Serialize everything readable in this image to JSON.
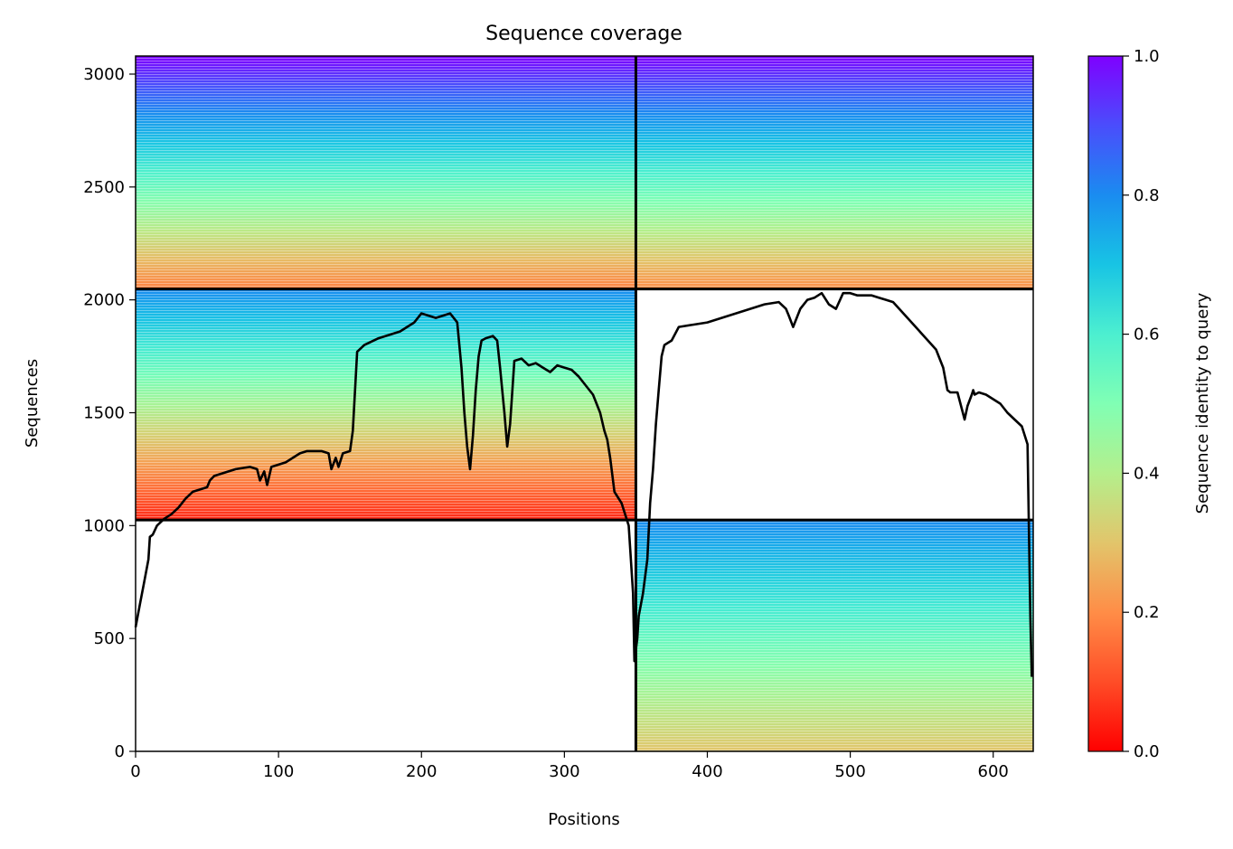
{
  "chart_data": {
    "type": "heatmap",
    "title": "Sequence coverage",
    "xlabel": "Positions",
    "ylabel": "Sequences",
    "xlim": [
      0,
      628
    ],
    "ylim": [
      0,
      3080
    ],
    "xticks": [
      0,
      100,
      200,
      300,
      400,
      500,
      600
    ],
    "yticks": [
      0,
      500,
      1000,
      1500,
      2000,
      2500,
      3000
    ],
    "grid": false,
    "colorbar": {
      "label": "Sequence identity to query",
      "colormap": "rainbow_r",
      "range": [
        0,
        1
      ],
      "ticks": [
        "0.0",
        "0.2",
        "0.4",
        "0.6",
        "0.8",
        "1.0"
      ]
    },
    "boundaries": {
      "x": [
        350
      ],
      "y": [
        1025,
        2048
      ]
    },
    "blocks": [
      {
        "x": [
          0,
          350
        ],
        "y": [
          2048,
          3080
        ],
        "identity_top": 1.0,
        "identity_bottom": 0.18
      },
      {
        "x": [
          350,
          628
        ],
        "y": [
          2048,
          3080
        ],
        "identity_top": 1.0,
        "identity_bottom": 0.2
      },
      {
        "x": [
          0,
          350
        ],
        "y": [
          1025,
          2048
        ],
        "identity_top": 0.8,
        "identity_bottom": 0.05
      },
      {
        "x": [
          350,
          628
        ],
        "y": [
          0,
          1025
        ],
        "identity_top": 0.8,
        "identity_bottom": 0.3
      }
    ],
    "coverage_line": {
      "color": "#000000",
      "x": [
        0,
        3,
        6,
        9,
        10,
        12,
        15,
        20,
        25,
        30,
        35,
        40,
        45,
        50,
        52,
        55,
        60,
        65,
        70,
        80,
        85,
        87,
        90,
        92,
        95,
        100,
        105,
        110,
        115,
        120,
        125,
        130,
        135,
        137,
        140,
        142,
        145,
        150,
        152,
        155,
        160,
        170,
        175,
        180,
        185,
        190,
        195,
        200,
        205,
        210,
        215,
        220,
        225,
        228,
        230,
        232,
        234,
        236,
        238,
        240,
        242,
        245,
        250,
        253,
        255,
        258,
        260,
        262,
        265,
        270,
        275,
        280,
        285,
        290,
        295,
        300,
        305,
        310,
        315,
        320,
        325,
        328,
        330,
        332,
        335,
        340,
        345,
        348,
        349,
        351,
        352,
        355,
        358,
        360,
        362,
        364,
        366,
        368,
        370,
        375,
        380,
        390,
        400,
        410,
        420,
        430,
        440,
        450,
        455,
        457,
        460,
        465,
        470,
        475,
        480,
        485,
        490,
        495,
        500,
        505,
        510,
        515,
        520,
        525,
        530,
        540,
        550,
        560,
        565,
        568,
        570,
        575,
        580,
        582,
        585,
        586,
        587,
        590,
        595,
        600,
        605,
        610,
        615,
        620,
        624,
        626,
        627
      ],
      "y": [
        550,
        650,
        750,
        850,
        950,
        960,
        1000,
        1030,
        1050,
        1080,
        1120,
        1150,
        1160,
        1170,
        1200,
        1220,
        1230,
        1240,
        1250,
        1260,
        1250,
        1200,
        1240,
        1180,
        1260,
        1270,
        1280,
        1300,
        1320,
        1330,
        1330,
        1330,
        1320,
        1250,
        1300,
        1260,
        1320,
        1330,
        1420,
        1770,
        1800,
        1830,
        1840,
        1850,
        1860,
        1880,
        1900,
        1940,
        1930,
        1920,
        1930,
        1940,
        1900,
        1700,
        1500,
        1350,
        1250,
        1400,
        1600,
        1750,
        1820,
        1830,
        1840,
        1820,
        1700,
        1500,
        1350,
        1450,
        1730,
        1740,
        1710,
        1720,
        1700,
        1680,
        1710,
        1700,
        1690,
        1660,
        1620,
        1580,
        1500,
        1420,
        1380,
        1300,
        1150,
        1100,
        1000,
        700,
        400,
        500,
        600,
        700,
        850,
        1100,
        1250,
        1450,
        1600,
        1750,
        1800,
        1820,
        1880,
        1890,
        1900,
        1920,
        1940,
        1960,
        1980,
        1990,
        1960,
        1930,
        1880,
        1960,
        2000,
        2010,
        2030,
        1980,
        1960,
        2030,
        2030,
        2020,
        2020,
        2020,
        2010,
        2000,
        1990,
        1920,
        1850,
        1780,
        1700,
        1600,
        1590,
        1590,
        1470,
        1530,
        1580,
        1600,
        1580,
        1590,
        1580,
        1560,
        1540,
        1500,
        1470,
        1440,
        1360,
        600,
        330
      ]
    }
  }
}
